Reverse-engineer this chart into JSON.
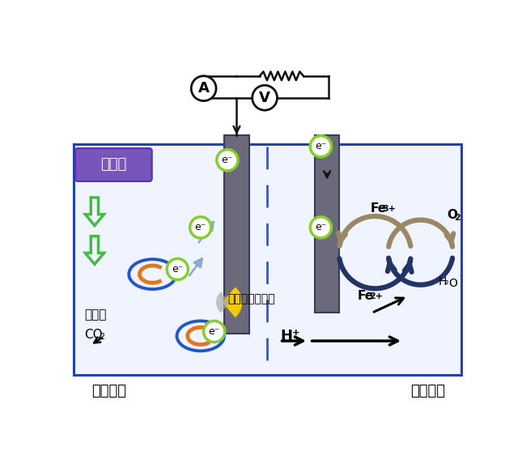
{
  "fig_w": 6.45,
  "fig_h": 5.57,
  "dpi": 100,
  "bg": "#ffffff",
  "cell_edge": "#2244aa",
  "cell_face": "#f0f4ff",
  "elec_face": "#6a6a7a",
  "elec_edge": "#3a3a5a",
  "wire_color": "#111111",
  "green_arr": "#44bb44",
  "e_circle_edge": "#88cc33",
  "e_circle_face": "#ffffff",
  "blue_bact": "#2255cc",
  "orange_bact": "#dd7722",
  "yellow_med": "#eecc00",
  "light_blue_arr": "#88aacc",
  "fe_tan": "#998866",
  "fe_dark_blue": "#223366",
  "org_box_face": "#7755bb",
  "org_box_edge": "#5533aa",
  "label_anode": "アノード",
  "label_cathode": "カソード",
  "label_organic": "有機物",
  "label_microbe": "微生物",
  "label_mediator": "メディエーター"
}
